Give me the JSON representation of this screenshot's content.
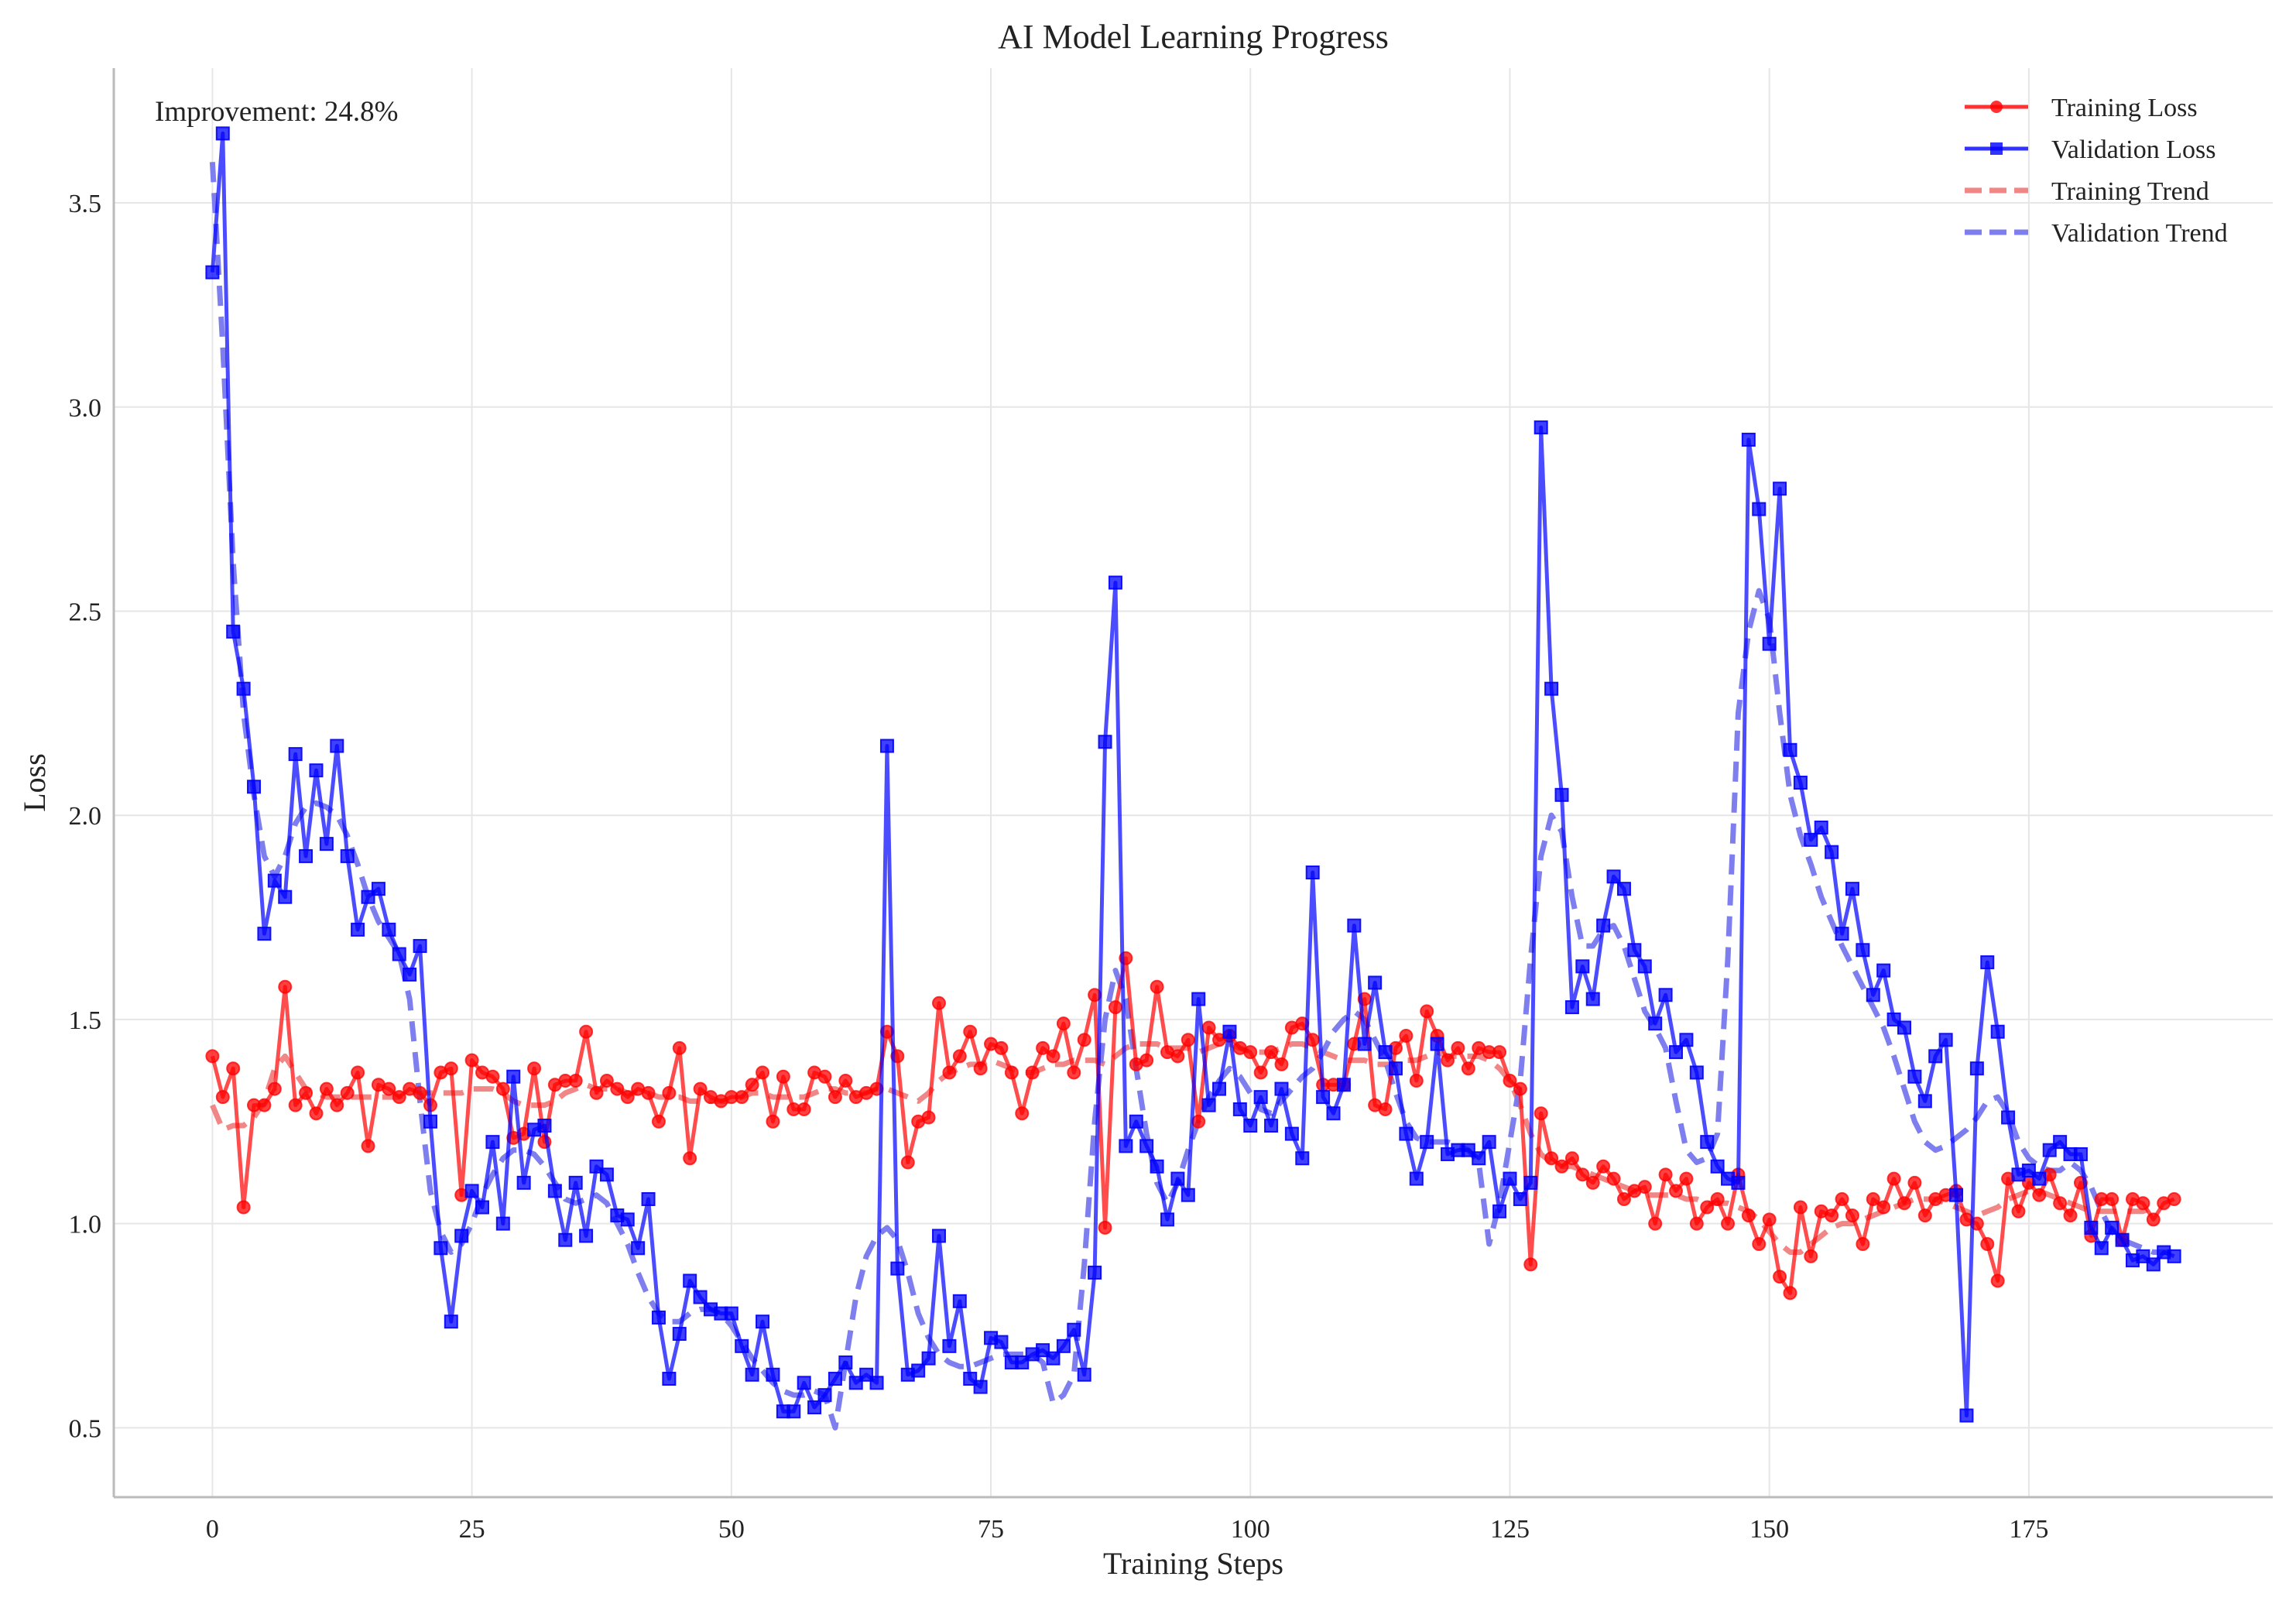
{
  "chart_data": {
    "type": "line",
    "title": "AI Model Learning Progress",
    "xlabel": "Training Steps",
    "ylabel": "Loss",
    "xlim": [
      -9.5,
      198.5
    ],
    "ylim": [
      0.33,
      3.83
    ],
    "xticks": [
      0,
      25,
      50,
      75,
      100,
      125,
      150,
      175
    ],
    "yticks": [
      0.5,
      1.0,
      1.5,
      2.0,
      2.5,
      3.0,
      3.5
    ],
    "xtick_labels": [
      "0",
      "25",
      "50",
      "75",
      "100",
      "125",
      "150",
      "175"
    ],
    "ytick_labels": [
      "0.5",
      "1.0",
      "1.5",
      "2.0",
      "2.5",
      "3.0",
      "3.5"
    ],
    "grid": true,
    "legend_position": "top-right",
    "annotation": "Improvement: 24.8%",
    "series": [
      {
        "name": "Training Loss",
        "color": "#ff0000",
        "marker": "circle",
        "style": "solid",
        "values": [
          1.41,
          1.31,
          1.38,
          1.04,
          1.29,
          1.29,
          1.33,
          1.58,
          1.29,
          1.32,
          1.27,
          1.33,
          1.29,
          1.32,
          1.37,
          1.19,
          1.34,
          1.33,
          1.31,
          1.33,
          1.32,
          1.29,
          1.37,
          1.38,
          1.07,
          1.4,
          1.37,
          1.36,
          1.33,
          1.21,
          1.22,
          1.38,
          1.2,
          1.34,
          1.35,
          1.35,
          1.47,
          1.32,
          1.35,
          1.33,
          1.31,
          1.33,
          1.32,
          1.25,
          1.32,
          1.43,
          1.16,
          1.33,
          1.31,
          1.3,
          1.31,
          1.31,
          1.34,
          1.37,
          1.25,
          1.36,
          1.28,
          1.28,
          1.37,
          1.36,
          1.31,
          1.35,
          1.31,
          1.32,
          1.33,
          1.47,
          1.41,
          1.15,
          1.25,
          1.26,
          1.54,
          1.37,
          1.41,
          1.47,
          1.38,
          1.44,
          1.43,
          1.37,
          1.27,
          1.37,
          1.43,
          1.41,
          1.49,
          1.37,
          1.45,
          1.56,
          0.99,
          1.53,
          1.65,
          1.39,
          1.4,
          1.58,
          1.42,
          1.41,
          1.45,
          1.25,
          1.48,
          1.45,
          1.46,
          1.43,
          1.42,
          1.37,
          1.42,
          1.39,
          1.48,
          1.49,
          1.45,
          1.34,
          1.34,
          1.34,
          1.44,
          1.55,
          1.29,
          1.28,
          1.43,
          1.46,
          1.35,
          1.52,
          1.46,
          1.4,
          1.43,
          1.38,
          1.43,
          1.42,
          1.42,
          1.35,
          1.33,
          0.9,
          1.27,
          1.16,
          1.14,
          1.16,
          1.12,
          1.1,
          1.14,
          1.11,
          1.06,
          1.08,
          1.09,
          1.0,
          1.12,
          1.08,
          1.11,
          1.0,
          1.04,
          1.06,
          1.0,
          1.12,
          1.02,
          0.95,
          1.01,
          0.87,
          0.83,
          1.04,
          0.92,
          1.03,
          1.02,
          1.06,
          1.02,
          0.95,
          1.06,
          1.04,
          1.11,
          1.05,
          1.1,
          1.02,
          1.06,
          1.07,
          1.08,
          1.01,
          1.0,
          0.95,
          0.86,
          1.11,
          1.03,
          1.1,
          1.07,
          1.12,
          1.05,
          1.02,
          1.1,
          0.97,
          1.06,
          1.06,
          0.96,
          1.06,
          1.05,
          1.01,
          1.05,
          1.06
        ]
      },
      {
        "name": "Validation Loss",
        "color": "#0000ff",
        "marker": "square",
        "style": "solid",
        "values": [
          3.33,
          3.67,
          2.45,
          2.31,
          2.07,
          1.71,
          1.84,
          1.8,
          2.15,
          1.9,
          2.11,
          1.93,
          2.17,
          1.9,
          1.72,
          1.8,
          1.82,
          1.72,
          1.66,
          1.61,
          1.68,
          1.25,
          0.94,
          0.76,
          0.97,
          1.08,
          1.04,
          1.2,
          1.0,
          1.36,
          1.1,
          1.23,
          1.24,
          1.08,
          0.96,
          1.1,
          0.97,
          1.14,
          1.12,
          1.02,
          1.01,
          0.94,
          1.06,
          0.77,
          0.62,
          0.73,
          0.86,
          0.82,
          0.79,
          0.78,
          0.78,
          0.7,
          0.63,
          0.76,
          0.63,
          0.54,
          0.54,
          0.61,
          0.55,
          0.58,
          0.62,
          0.66,
          0.61,
          0.63,
          0.61,
          2.17,
          0.89,
          0.63,
          0.64,
          0.67,
          0.97,
          0.7,
          0.81,
          0.62,
          0.6,
          0.72,
          0.71,
          0.66,
          0.66,
          0.68,
          0.69,
          0.67,
          0.7,
          0.74,
          0.63,
          0.88,
          2.18,
          2.57,
          1.19,
          1.25,
          1.19,
          1.14,
          1.01,
          1.11,
          1.07,
          1.55,
          1.29,
          1.33,
          1.47,
          1.28,
          1.24,
          1.31,
          1.24,
          1.33,
          1.22,
          1.16,
          1.86,
          1.31,
          1.27,
          1.34,
          1.73,
          1.44,
          1.59,
          1.42,
          1.38,
          1.22,
          1.11,
          1.2,
          1.44,
          1.17,
          1.18,
          1.18,
          1.16,
          1.2,
          1.03,
          1.11,
          1.06,
          1.1,
          2.95,
          2.31,
          2.05,
          1.53,
          1.63,
          1.55,
          1.73,
          1.85,
          1.82,
          1.67,
          1.63,
          1.49,
          1.56,
          1.42,
          1.45,
          1.37,
          1.2,
          1.14,
          1.11,
          1.1,
          2.92,
          2.75,
          2.42,
          2.8,
          2.16,
          2.08,
          1.94,
          1.97,
          1.91,
          1.71,
          1.82,
          1.67,
          1.56,
          1.62,
          1.5,
          1.48,
          1.36,
          1.3,
          1.41,
          1.45,
          1.07,
          0.53,
          1.38,
          1.64,
          1.47,
          1.26,
          1.12,
          1.13,
          1.11,
          1.18,
          1.2,
          1.17,
          1.17,
          0.99,
          0.94,
          0.99,
          0.96,
          0.91,
          0.92,
          0.9,
          0.93,
          0.92
        ]
      },
      {
        "name": "Training Trend",
        "color": "#f08080",
        "style": "dashed",
        "values": [
          1.29,
          1.23,
          1.24,
          1.24,
          1.26,
          1.3,
          1.38,
          1.41,
          1.37,
          1.33,
          1.32,
          1.31,
          1.31,
          1.31,
          1.31,
          1.31,
          1.31,
          1.31,
          1.31,
          1.32,
          1.32,
          1.32,
          1.32,
          1.32,
          1.32,
          1.33,
          1.33,
          1.33,
          1.32,
          1.3,
          1.29,
          1.29,
          1.29,
          1.3,
          1.32,
          1.33,
          1.34,
          1.33,
          1.33,
          1.33,
          1.32,
          1.32,
          1.32,
          1.31,
          1.31,
          1.31,
          1.3,
          1.3,
          1.3,
          1.3,
          1.3,
          1.31,
          1.32,
          1.32,
          1.31,
          1.31,
          1.31,
          1.31,
          1.32,
          1.33,
          1.33,
          1.32,
          1.32,
          1.32,
          1.33,
          1.33,
          1.32,
          1.31,
          1.3,
          1.32,
          1.35,
          1.37,
          1.38,
          1.39,
          1.39,
          1.4,
          1.39,
          1.38,
          1.37,
          1.37,
          1.38,
          1.39,
          1.39,
          1.4,
          1.4,
          1.4,
          1.39,
          1.41,
          1.43,
          1.44,
          1.44,
          1.44,
          1.43,
          1.43,
          1.43,
          1.42,
          1.43,
          1.44,
          1.44,
          1.43,
          1.42,
          1.42,
          1.42,
          1.43,
          1.44,
          1.44,
          1.43,
          1.42,
          1.41,
          1.4,
          1.4,
          1.4,
          1.39,
          1.39,
          1.39,
          1.4,
          1.4,
          1.41,
          1.42,
          1.41,
          1.41,
          1.41,
          1.41,
          1.4,
          1.38,
          1.35,
          1.29,
          1.22,
          1.17,
          1.15,
          1.14,
          1.14,
          1.13,
          1.12,
          1.11,
          1.1,
          1.09,
          1.08,
          1.07,
          1.07,
          1.07,
          1.07,
          1.06,
          1.06,
          1.05,
          1.05,
          1.05,
          1.04,
          1.03,
          1.01,
          0.98,
          0.95,
          0.93,
          0.93,
          0.95,
          0.97,
          0.99,
          1.0,
          1.0,
          1.01,
          1.02,
          1.03,
          1.04,
          1.05,
          1.06,
          1.06,
          1.06,
          1.05,
          1.04,
          1.03,
          1.02,
          1.03,
          1.04,
          1.06,
          1.07,
          1.08,
          1.08,
          1.07,
          1.06,
          1.05,
          1.04,
          1.03,
          1.03,
          1.03,
          1.03,
          1.03,
          1.03,
          1.04
        ]
      },
      {
        "name": "Validation Trend",
        "color": "#7777ee",
        "style": "dashed",
        "values": [
          3.6,
          3.15,
          2.62,
          2.25,
          2.05,
          1.9,
          1.85,
          1.9,
          1.98,
          2.02,
          2.03,
          2.02,
          2.0,
          1.95,
          1.88,
          1.8,
          1.74,
          1.7,
          1.66,
          1.55,
          1.3,
          1.08,
          0.98,
          0.93,
          0.95,
          1.0,
          1.07,
          1.12,
          1.16,
          1.18,
          1.18,
          1.17,
          1.14,
          1.1,
          1.06,
          1.05,
          1.06,
          1.07,
          1.05,
          1.0,
          0.95,
          0.88,
          0.82,
          0.78,
          0.76,
          0.76,
          0.78,
          0.79,
          0.79,
          0.78,
          0.75,
          0.71,
          0.67,
          0.64,
          0.61,
          0.59,
          0.58,
          0.58,
          0.59,
          0.58,
          0.5,
          0.66,
          0.82,
          0.92,
          0.97,
          0.99,
          0.96,
          0.88,
          0.78,
          0.72,
          0.68,
          0.66,
          0.65,
          0.65,
          0.66,
          0.67,
          0.68,
          0.68,
          0.68,
          0.68,
          0.66,
          0.56,
          0.58,
          0.63,
          0.9,
          1.25,
          1.5,
          1.62,
          1.55,
          1.38,
          1.22,
          1.1,
          1.05,
          1.1,
          1.18,
          1.25,
          1.31,
          1.35,
          1.38,
          1.36,
          1.32,
          1.28,
          1.27,
          1.3,
          1.33,
          1.36,
          1.38,
          1.42,
          1.47,
          1.5,
          1.52,
          1.5,
          1.45,
          1.4,
          1.32,
          1.25,
          1.21,
          1.2,
          1.2,
          1.2,
          1.19,
          1.18,
          1.15,
          0.95,
          1.05,
          1.2,
          1.35,
          1.65,
          1.9,
          2.0,
          1.96,
          1.8,
          1.68,
          1.68,
          1.72,
          1.73,
          1.68,
          1.6,
          1.52,
          1.48,
          1.43,
          1.3,
          1.18,
          1.15,
          1.16,
          1.22,
          1.65,
          2.25,
          2.45,
          2.55,
          2.48,
          2.25,
          2.05,
          1.95,
          1.88,
          1.8,
          1.74,
          1.68,
          1.63,
          1.58,
          1.53,
          1.48,
          1.41,
          1.33,
          1.25,
          1.2,
          1.18,
          1.19,
          1.21,
          1.23,
          1.26,
          1.3,
          1.31,
          1.27,
          1.2,
          1.16,
          1.14,
          1.13,
          1.13,
          1.15,
          1.13,
          1.09,
          1.03,
          0.98,
          0.96,
          0.95,
          0.94,
          0.93,
          0.93,
          0.93
        ]
      }
    ]
  }
}
